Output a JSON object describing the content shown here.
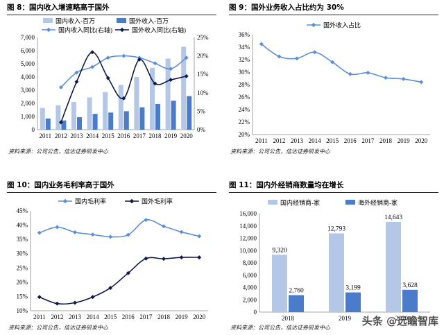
{
  "panels": {
    "p8": {
      "title": "图 8：国内收入增速略高于国外",
      "source": "资料来源：公司公告，信达证券研发中心"
    },
    "p9": {
      "title": "图 9：国外业务收入占比约为 30%",
      "source": "资料来源：公司公告，信达证券研发中心"
    },
    "p10": {
      "title": "图 10：国内业务毛利率高于国外",
      "source": "资料来源：公司公告，信达证券研发中心"
    },
    "p11": {
      "title": "图 11：国内外经销商数量均在增长",
      "source": "资料来源：公司公告，信达证券研发中心"
    }
  },
  "watermark": "头条 @远瞻智库",
  "colors": {
    "light_blue": "#b4c7e7",
    "mid_blue": "#4a7cc9",
    "line_blue": "#5b8fd6",
    "dark_navy": "#0d1b4a"
  },
  "chart_data": [
    {
      "id": "p8",
      "type": "bar",
      "categories": [
        "2011",
        "2012",
        "2013",
        "2014",
        "2015",
        "2016",
        "2017",
        "2018",
        "2019",
        "2020"
      ],
      "series": [
        {
          "name": "国内收入-百万",
          "kind": "bar",
          "axis": "left",
          "color": "#b4c7e7",
          "values": [
            1650,
            1850,
            2100,
            2450,
            2850,
            3400,
            4000,
            4700,
            5400,
            6300
          ]
        },
        {
          "name": "国外收入-百万",
          "kind": "bar",
          "axis": "left",
          "color": "#4a7cc9",
          "values": [
            850,
            700,
            950,
            1200,
            1300,
            1400,
            1700,
            1950,
            2200,
            2550
          ]
        },
        {
          "name": "国内收入同比(右轴)",
          "kind": "line",
          "axis": "right",
          "color": "#5b8fd6",
          "marker": "diamond",
          "values": [
            null,
            11.5,
            15.5,
            17,
            19.5,
            20,
            19.5,
            18,
            16.5,
            19.5
          ]
        },
        {
          "name": "国外收入同比(右轴)",
          "kind": "line",
          "axis": "right",
          "color": "#0d1b4a",
          "marker": "diamond",
          "values": [
            null,
            2,
            13,
            21,
            14,
            8.5,
            19,
            12.5,
            13.5,
            14.5
          ]
        }
      ],
      "yticks_left": [
        "0",
        "1,000",
        "2,000",
        "3,000",
        "4,000",
        "5,000",
        "6,000",
        "7,000"
      ],
      "yticks_right": [
        "0%",
        "5%",
        "10%",
        "15%",
        "20%",
        "25%"
      ],
      "ylim": [
        0,
        7000
      ],
      "ylim_right": [
        0,
        25
      ],
      "legend": "top"
    },
    {
      "id": "p9",
      "type": "line",
      "categories": [
        "2011",
        "2012",
        "2013",
        "2014",
        "2015",
        "2016",
        "2017",
        "2018",
        "2019",
        "2020"
      ],
      "series": [
        {
          "name": "国外收入占比",
          "color": "#5b8fd6",
          "marker": "diamond",
          "values": [
            34.5,
            32.5,
            32.2,
            33.2,
            31.6,
            29.7,
            29.9,
            29.1,
            28.9,
            28.4
          ]
        }
      ],
      "yticks": [
        "20%",
        "22%",
        "24%",
        "26%",
        "28%",
        "30%",
        "32%",
        "34%",
        "36%"
      ],
      "ylim": [
        20,
        36
      ],
      "legend": "top"
    },
    {
      "id": "p10",
      "type": "line",
      "categories": [
        "2011",
        "2012",
        "2013",
        "2014",
        "2015",
        "2016",
        "2017",
        "2018",
        "2019",
        "2020"
      ],
      "series": [
        {
          "name": "国内毛利率",
          "color": "#5b8fd6",
          "marker": "diamond",
          "values": [
            37.3,
            39.3,
            37.5,
            36.7,
            35.9,
            36.6,
            41.8,
            39.6,
            37.6,
            36.1
          ]
        },
        {
          "name": "国外毛利率",
          "color": "#0d1b4a",
          "marker": "diamond",
          "values": [
            14.8,
            12.5,
            12.8,
            14.8,
            18,
            23.2,
            28.3,
            28.2,
            28.7,
            28.7
          ]
        }
      ],
      "yticks": [
        "10%",
        "15%",
        "20%",
        "25%",
        "30%",
        "35%",
        "40%",
        "45%"
      ],
      "ylim": [
        10,
        45
      ],
      "legend": "top"
    },
    {
      "id": "p11",
      "type": "bar",
      "categories": [
        "2018",
        "2019",
        "2020"
      ],
      "series": [
        {
          "name": "国内经销商-家",
          "color": "#b4c7e7",
          "values": [
            9320,
            12793,
            14643
          ],
          "labels": [
            "9,320",
            "12,793",
            "14,643"
          ]
        },
        {
          "name": "海外经销商-家",
          "color": "#4a7cc9",
          "values": [
            2760,
            3199,
            3628
          ],
          "labels": [
            "2,760",
            "3,199",
            "3,628"
          ]
        }
      ],
      "yticks": [
        "0",
        "2,000",
        "4,000",
        "6,000",
        "8,000",
        "10,000",
        "12,000",
        "14,000",
        "16,000"
      ],
      "ylim": [
        0,
        16000
      ],
      "legend": "top"
    }
  ]
}
